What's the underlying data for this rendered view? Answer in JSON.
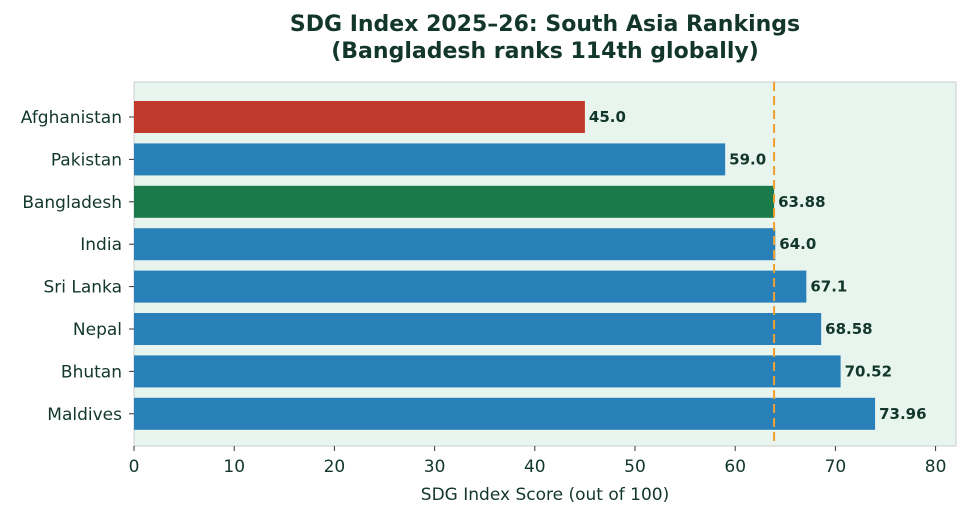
{
  "chart_data": {
    "type": "bar",
    "orientation": "horizontal",
    "title": [
      "SDG Index 2025–26: South Asia Rankings",
      "(Bangladesh ranks 114th globally)"
    ],
    "categories": [
      "Afghanistan",
      "Pakistan",
      "Bangladesh",
      "India",
      "Sri Lanka",
      "Nepal",
      "Bhutan",
      "Maldives"
    ],
    "values": [
      45.0,
      59.0,
      63.88,
      64.0,
      67.1,
      68.58,
      70.52,
      73.96
    ],
    "value_labels": [
      "45.0",
      "59.0",
      "63.88",
      "64.0",
      "67.1",
      "68.58",
      "70.52",
      "73.96"
    ],
    "bar_colors": [
      "#c0392b",
      "#2980b9",
      "#1a7a4a",
      "#2980b9",
      "#2980b9",
      "#2980b9",
      "#2980b9",
      "#2980b9"
    ],
    "xlabel": "SDG Index Score (out of 100)",
    "ylabel": "",
    "xlim": [
      0,
      82
    ],
    "xticks": [
      0,
      10,
      20,
      30,
      40,
      50,
      60,
      70,
      80
    ],
    "reference_line": {
      "value": 63.88,
      "color": "#f0a030",
      "style": "dashed"
    },
    "plot_background": "#e8f4ee",
    "grid": false
  }
}
